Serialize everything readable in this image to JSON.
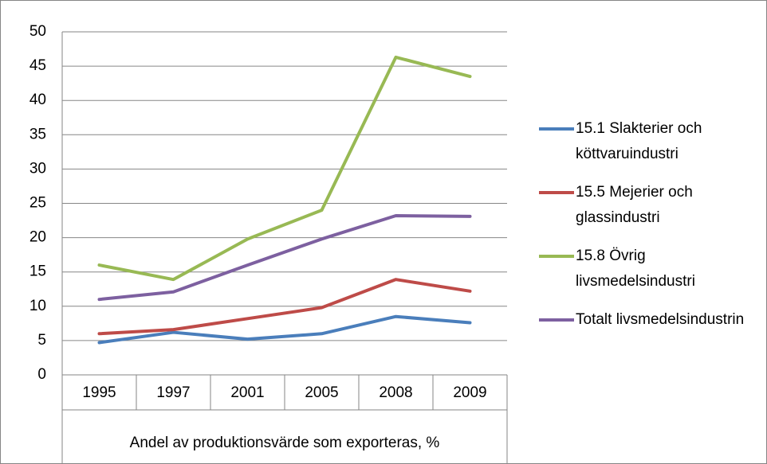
{
  "chart_data": {
    "type": "line",
    "categories": [
      "1995",
      "1997",
      "2001",
      "2005",
      "2008",
      "2009"
    ],
    "x_axis_label": "Andel av produktionsvärde som exporteras, %",
    "series": [
      {
        "name": "15.1 Slakterier och köttvaruindustri",
        "color": "#4a7ebb",
        "values": [
          4.7,
          6.2,
          5.2,
          6.0,
          8.5,
          7.6
        ]
      },
      {
        "name": "15.5 Mejerier och glassindustri",
        "color": "#be4b48",
        "values": [
          6.0,
          6.6,
          8.2,
          9.8,
          13.9,
          12.2
        ]
      },
      {
        "name": "15.8 Övrig livsmedelsindustri",
        "color": "#98b954",
        "values": [
          16.0,
          13.9,
          19.8,
          24.0,
          46.3,
          43.5
        ]
      },
      {
        "name": "Totalt livsmedelsindustrin",
        "color": "#7d60a0",
        "values": [
          11.0,
          12.1,
          16.0,
          19.8,
          23.2,
          23.1
        ]
      }
    ],
    "ylim": [
      0,
      50
    ],
    "yticks": [
      0,
      5,
      10,
      15,
      20,
      25,
      30,
      35,
      40,
      45,
      50
    ],
    "grid": true,
    "legend": "right"
  }
}
